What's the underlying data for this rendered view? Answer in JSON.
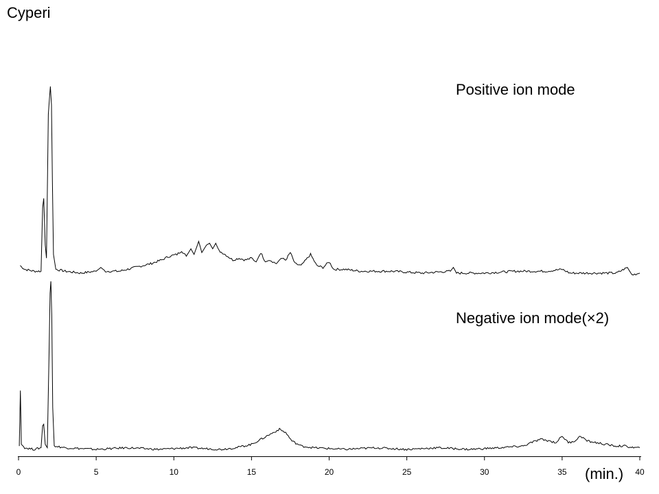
{
  "title": "Cyperi",
  "labels": {
    "positive": "Positive ion mode",
    "negative": "Negative ion mode(×2)",
    "unit": "(min.)"
  },
  "chart_data": {
    "type": "line",
    "title": "Cyperi",
    "xlabel": "(min.)",
    "ylabel": "",
    "xlim": [
      0,
      40
    ],
    "x_ticks": [
      0,
      5,
      10,
      15,
      20,
      25,
      30,
      35,
      40
    ],
    "grid": false,
    "legend": "none",
    "series": [
      {
        "name": "Positive ion mode",
        "points": [
          [
            0.1,
            0.04
          ],
          [
            0.4,
            0.02
          ],
          [
            1.0,
            0.01
          ],
          [
            1.45,
            0.01
          ],
          [
            1.55,
            0.35
          ],
          [
            1.62,
            0.4
          ],
          [
            1.72,
            0.15
          ],
          [
            1.8,
            0.08
          ],
          [
            1.92,
            0.85
          ],
          [
            2.0,
            0.95
          ],
          [
            2.05,
            1.0
          ],
          [
            2.12,
            0.9
          ],
          [
            2.18,
            0.5
          ],
          [
            2.25,
            0.1
          ],
          [
            2.4,
            0.02
          ],
          [
            3.0,
            0.01
          ],
          [
            4.0,
            0.0
          ],
          [
            5.0,
            0.01
          ],
          [
            5.3,
            0.03
          ],
          [
            5.6,
            0.01
          ],
          [
            6.5,
            0.01
          ],
          [
            7.5,
            0.03
          ],
          [
            8.5,
            0.05
          ],
          [
            9.2,
            0.07
          ],
          [
            9.7,
            0.09
          ],
          [
            10.2,
            0.1
          ],
          [
            10.5,
            0.12
          ],
          [
            10.8,
            0.09
          ],
          [
            11.1,
            0.13
          ],
          [
            11.3,
            0.1
          ],
          [
            11.6,
            0.17
          ],
          [
            11.8,
            0.11
          ],
          [
            12.1,
            0.15
          ],
          [
            12.3,
            0.16
          ],
          [
            12.5,
            0.13
          ],
          [
            12.7,
            0.16
          ],
          [
            12.9,
            0.12
          ],
          [
            13.3,
            0.1
          ],
          [
            13.8,
            0.07
          ],
          [
            14.2,
            0.08
          ],
          [
            14.6,
            0.07
          ],
          [
            15.0,
            0.08
          ],
          [
            15.3,
            0.06
          ],
          [
            15.6,
            0.11
          ],
          [
            15.9,
            0.06
          ],
          [
            16.2,
            0.07
          ],
          [
            16.6,
            0.05
          ],
          [
            16.9,
            0.08
          ],
          [
            17.2,
            0.07
          ],
          [
            17.5,
            0.11
          ],
          [
            17.8,
            0.05
          ],
          [
            18.2,
            0.04
          ],
          [
            18.5,
            0.07
          ],
          [
            18.8,
            0.1
          ],
          [
            19.2,
            0.04
          ],
          [
            19.6,
            0.03
          ],
          [
            20.0,
            0.06
          ],
          [
            20.3,
            0.02
          ],
          [
            21.0,
            0.02
          ],
          [
            22.0,
            0.01
          ],
          [
            24.0,
            0.01
          ],
          [
            26.0,
            0.0
          ],
          [
            27.8,
            0.01
          ],
          [
            28.0,
            0.03
          ],
          [
            28.2,
            0.0
          ],
          [
            30.0,
            0.0
          ],
          [
            32.0,
            0.01
          ],
          [
            34.0,
            0.01
          ],
          [
            35.0,
            0.02
          ],
          [
            35.5,
            0.0
          ],
          [
            37.0,
            0.0
          ],
          [
            38.5,
            0.0
          ],
          [
            39.2,
            0.03
          ],
          [
            39.5,
            -0.01
          ],
          [
            40.0,
            0.0
          ]
        ]
      },
      {
        "name": "Negative ion mode(×2)",
        "points": [
          [
            0.05,
            0.02
          ],
          [
            0.12,
            0.35
          ],
          [
            0.18,
            0.03
          ],
          [
            0.4,
            0.01
          ],
          [
            1.0,
            0.0
          ],
          [
            1.45,
            0.01
          ],
          [
            1.55,
            0.14
          ],
          [
            1.62,
            0.15
          ],
          [
            1.72,
            0.03
          ],
          [
            1.85,
            0.01
          ],
          [
            1.97,
            0.6
          ],
          [
            2.03,
            0.93
          ],
          [
            2.08,
            1.0
          ],
          [
            2.14,
            0.8
          ],
          [
            2.2,
            0.25
          ],
          [
            2.3,
            0.02
          ],
          [
            3.0,
            0.01
          ],
          [
            5.0,
            0.0
          ],
          [
            7.0,
            0.01
          ],
          [
            9.0,
            0.0
          ],
          [
            11.0,
            0.01
          ],
          [
            13.0,
            0.0
          ],
          [
            14.0,
            0.01
          ],
          [
            15.0,
            0.03
          ],
          [
            15.8,
            0.07
          ],
          [
            16.4,
            0.1
          ],
          [
            16.8,
            0.12
          ],
          [
            17.2,
            0.1
          ],
          [
            17.6,
            0.05
          ],
          [
            18.2,
            0.02
          ],
          [
            19.0,
            0.01
          ],
          [
            21.0,
            0.0
          ],
          [
            23.0,
            0.01
          ],
          [
            25.0,
            0.0
          ],
          [
            27.0,
            0.01
          ],
          [
            29.0,
            0.0
          ],
          [
            31.0,
            0.01
          ],
          [
            32.5,
            0.02
          ],
          [
            33.0,
            0.04
          ],
          [
            33.6,
            0.06
          ],
          [
            34.2,
            0.05
          ],
          [
            34.6,
            0.04
          ],
          [
            35.0,
            0.08
          ],
          [
            35.4,
            0.04
          ],
          [
            35.8,
            0.05
          ],
          [
            36.2,
            0.08
          ],
          [
            36.6,
            0.05
          ],
          [
            37.2,
            0.04
          ],
          [
            37.8,
            0.03
          ],
          [
            38.4,
            0.02
          ],
          [
            39.0,
            0.02
          ],
          [
            39.6,
            0.01
          ],
          [
            40.0,
            0.01
          ]
        ]
      }
    ]
  }
}
